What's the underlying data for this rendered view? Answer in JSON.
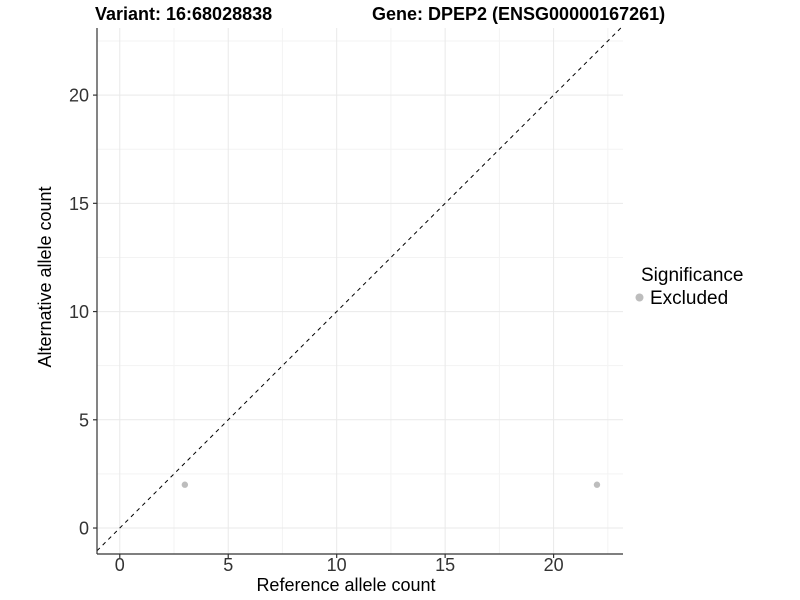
{
  "titles": {
    "variant": "Variant: 16:68028838",
    "gene": "Gene: DPEP2 (ENSG00000167261)"
  },
  "chart_data": {
    "type": "scatter",
    "xlabel": "Reference allele count",
    "ylabel": "Alternative allele count",
    "xlim": [
      -1.05,
      23.2
    ],
    "ylim": [
      -1.2,
      23.1
    ],
    "x_major_ticks": [
      0,
      5,
      10,
      15,
      20
    ],
    "y_major_ticks": [
      0,
      5,
      10,
      15,
      20
    ],
    "x_minor_ticks": [
      2.5,
      7.5,
      12.5,
      17.5,
      22.5
    ],
    "y_minor_ticks": [
      2.5,
      7.5,
      12.5,
      17.5,
      22.5
    ],
    "grid": true,
    "reference_line": {
      "type": "identity",
      "style": "dashed",
      "color": "#000000"
    },
    "series": [
      {
        "name": "Excluded",
        "color": "#bdbdbd",
        "marker_radius": 3.2,
        "points": [
          [
            3,
            2
          ],
          [
            22,
            2
          ]
        ]
      }
    ],
    "legend": {
      "title": "Significance",
      "position": "right",
      "items": [
        {
          "label": "Excluded",
          "color": "#bdbdbd"
        }
      ]
    }
  },
  "colors": {
    "background": "#ffffff",
    "grid_major": "#e9e9e9",
    "grid_minor": "#f3f3f3",
    "axis_line": "#333333",
    "tick_mark": "#333333",
    "point": "#bdbdbd",
    "reference_line": "#000000"
  }
}
